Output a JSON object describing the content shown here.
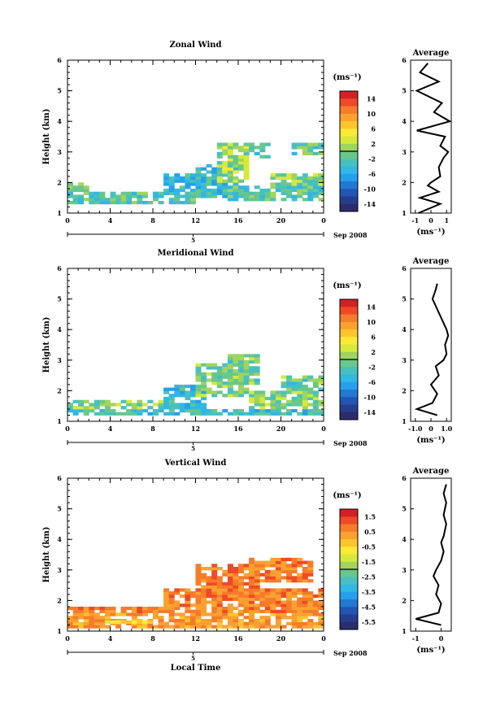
{
  "panels": [
    {
      "title": "Zonal Wind",
      "ylabel": "Height (km)",
      "yticks": [
        "1",
        "2",
        "3",
        "4",
        "5",
        "6"
      ],
      "xticks": [
        "0",
        "4",
        "8",
        "12",
        "16",
        "20",
        "0"
      ],
      "date_tick": "5",
      "date_label": "Sep 2008",
      "xlabel": "",
      "colorbar": {
        "unit": "(ms⁻¹)",
        "labels": [
          "14",
          "10",
          "6",
          "2",
          "-2",
          "-6",
          "-10",
          "-14"
        ],
        "colors": [
          "#d42027",
          "#ee4a25",
          "#f67b2b",
          "#fca12f",
          "#fdc42e",
          "#fde936",
          "#d6e93a",
          "#9fd45d",
          "#68c78c",
          "#48c1bd",
          "#31b7e4",
          "#25a0ec",
          "#2179d3",
          "#2156b3",
          "#263e90",
          "#2a2d6b"
        ]
      },
      "average": {
        "title": "Average",
        "xlabel": "(ms⁻¹)",
        "xticks": [
          "-1",
          "0",
          "1"
        ],
        "yticks": [
          "1",
          "2",
          "3",
          "4",
          "5",
          "6"
        ]
      }
    },
    {
      "title": "Meridional Wind",
      "ylabel": "Height (km)",
      "yticks": [
        "1",
        "2",
        "3",
        "4",
        "5",
        "6"
      ],
      "xticks": [
        "0",
        "4",
        "8",
        "12",
        "16",
        "20",
        "0"
      ],
      "date_tick": "5",
      "date_label": "Sep 2008",
      "xlabel": "",
      "colorbar": {
        "unit": "(ms⁻¹)",
        "labels": [
          "14",
          "10",
          "6",
          "2",
          "-2",
          "-6",
          "-10",
          "-14"
        ],
        "colors": [
          "#d42027",
          "#ee4a25",
          "#f67b2b",
          "#fca12f",
          "#fdc42e",
          "#fde936",
          "#d6e93a",
          "#9fd45d",
          "#68c78c",
          "#48c1bd",
          "#31b7e4",
          "#25a0ec",
          "#2179d3",
          "#2156b3",
          "#263e90",
          "#2a2d6b"
        ]
      },
      "average": {
        "title": "Average",
        "xlabel": "(ms⁻¹)",
        "xticks": [
          "-1.0",
          "0",
          "1.0"
        ],
        "yticks": [
          "1",
          "2",
          "3",
          "4",
          "5",
          "6"
        ]
      }
    },
    {
      "title": "Vertical Wind",
      "ylabel": "Height (km)",
      "yticks": [
        "1",
        "2",
        "3",
        "4",
        "5",
        "6"
      ],
      "xticks": [
        "0",
        "4",
        "8",
        "12",
        "16",
        "20",
        "0"
      ],
      "date_tick": "5",
      "date_label": "Sep 2008",
      "xlabel": "Local Time",
      "colorbar": {
        "unit": "(ms⁻¹)",
        "labels": [
          "1.5",
          "0.5",
          "-0.5",
          "-1.5",
          "-2.5",
          "-3.5",
          "-4.5",
          "-5.5"
        ],
        "colors": [
          "#d42027",
          "#ee4a25",
          "#f67b2b",
          "#fca12f",
          "#fdc42e",
          "#fde936",
          "#d6e93a",
          "#9fd45d",
          "#68c78c",
          "#48c1bd",
          "#31b7e4",
          "#25a0ec",
          "#2179d3",
          "#2156b3",
          "#263e90",
          "#2a2d6b"
        ]
      },
      "average": {
        "title": "Average",
        "xlabel": "(ms⁻¹)",
        "xticks": [
          "-1",
          "0"
        ],
        "yticks": [
          "1",
          "2",
          "3",
          "4",
          "5",
          "6"
        ]
      }
    }
  ],
  "chart_data": [
    {
      "type": "heatmap",
      "title": "Zonal Wind",
      "xlabel": "",
      "ylabel": "Height (km)",
      "xlim": [
        0,
        24
      ],
      "ylim": [
        1,
        6
      ],
      "colorbar_range": [
        -14,
        14
      ],
      "cells": [
        {
          "t0": 0,
          "t1": 12,
          "h0": 1.3,
          "h1": 1.7,
          "v": -2
        },
        {
          "t0": 0,
          "t1": 2,
          "h0": 1.7,
          "h1": 2.0,
          "v": -1
        },
        {
          "t0": 9,
          "t1": 13,
          "h0": 1.6,
          "h1": 2.3,
          "v": -4
        },
        {
          "t0": 12,
          "t1": 16,
          "h0": 1.5,
          "h1": 2.6,
          "v": -3
        },
        {
          "t0": 14,
          "t1": 17,
          "h0": 2.0,
          "h1": 3.3,
          "v": 1
        },
        {
          "t0": 16.5,
          "t1": 19,
          "h0": 2.8,
          "h1": 3.3,
          "v": -2
        },
        {
          "t0": 15,
          "t1": 24,
          "h0": 1.4,
          "h1": 1.9,
          "v": -2
        },
        {
          "t0": 19,
          "t1": 24,
          "h0": 1.9,
          "h1": 2.3,
          "v": 0
        },
        {
          "t0": 21,
          "t1": 24,
          "h0": 2.9,
          "h1": 3.3,
          "v": -1
        }
      ],
      "average_profile": {
        "xlim": [
          -1.3,
          1.3
        ],
        "heights": [
          1.0,
          1.3,
          1.5,
          1.7,
          1.9,
          2.0,
          2.2,
          2.5,
          2.8,
          3.0,
          3.2,
          3.5,
          3.7,
          4.0,
          4.3,
          4.6,
          5.0,
          5.3,
          5.6,
          5.9
        ],
        "values": [
          -0.8,
          0.6,
          -0.7,
          0.5,
          -0.2,
          0.0,
          0.6,
          0.5,
          0.8,
          1.1,
          0.6,
          0.9,
          -0.9,
          1.2,
          0.2,
          0.7,
          -0.9,
          0.5,
          -0.7,
          -0.2
        ]
      }
    },
    {
      "type": "heatmap",
      "title": "Meridional Wind",
      "xlabel": "",
      "ylabel": "Height (km)",
      "xlim": [
        0,
        24
      ],
      "ylim": [
        1,
        6
      ],
      "colorbar_range": [
        -14,
        14
      ],
      "cells": [
        {
          "t0": 0,
          "t1": 24,
          "h0": 1.2,
          "h1": 1.4,
          "v": -3
        },
        {
          "t0": 0,
          "t1": 9,
          "h0": 1.4,
          "h1": 1.7,
          "v": 0
        },
        {
          "t0": 9,
          "t1": 13,
          "h0": 1.4,
          "h1": 2.2,
          "v": -4
        },
        {
          "t0": 12,
          "t1": 17,
          "h0": 1.8,
          "h1": 2.9,
          "v": 0
        },
        {
          "t0": 15,
          "t1": 18,
          "h0": 2.2,
          "h1": 3.2,
          "v": -1
        },
        {
          "t0": 17,
          "t1": 24,
          "h0": 1.4,
          "h1": 2.0,
          "v": 0
        },
        {
          "t0": 20,
          "t1": 24,
          "h0": 2.0,
          "h1": 2.5,
          "v": -1
        }
      ],
      "average_profile": {
        "xlim": [
          -1.3,
          1.3
        ],
        "heights": [
          1.2,
          1.4,
          1.6,
          1.9,
          2.2,
          2.5,
          2.8,
          3.0,
          3.2,
          3.5,
          3.8,
          4.0,
          5.0,
          5.3,
          5.5
        ],
        "values": [
          0.4,
          -0.9,
          0.1,
          0.4,
          0.0,
          0.5,
          0.3,
          0.8,
          1.0,
          0.9,
          1.1,
          1.0,
          0.1,
          0.3,
          0.4
        ]
      }
    },
    {
      "type": "heatmap",
      "title": "Vertical Wind",
      "xlabel": "Local Time",
      "ylabel": "Height (km)",
      "xlim": [
        0,
        24
      ],
      "ylim": [
        1,
        6
      ],
      "colorbar_range": [
        -5.5,
        1.5
      ],
      "cells": [
        {
          "t0": 0,
          "t1": 24,
          "h0": 1.1,
          "h1": 1.6,
          "v": 0.0
        },
        {
          "t0": 0,
          "t1": 10,
          "h0": 1.6,
          "h1": 1.8,
          "v": 0.3
        },
        {
          "t0": 9,
          "t1": 24,
          "h0": 1.6,
          "h1": 2.4,
          "v": 0.3
        },
        {
          "t0": 12,
          "t1": 18,
          "h0": 2.0,
          "h1": 3.2,
          "v": 0.4
        },
        {
          "t0": 17,
          "t1": 23,
          "h0": 2.6,
          "h1": 3.4,
          "v": 0.3
        },
        {
          "t0": 3,
          "t1": 8,
          "h0": 1.25,
          "h1": 1.35,
          "v": -1.0
        }
      ],
      "average_profile": {
        "xlim": [
          -1.2,
          0.4
        ],
        "heights": [
          1.2,
          1.4,
          1.6,
          1.9,
          2.2,
          2.5,
          2.8,
          3.0,
          3.3,
          3.6,
          3.9,
          4.1,
          4.5,
          4.8,
          5.2,
          5.5,
          5.8
        ],
        "values": [
          0.0,
          -1.0,
          -0.1,
          0.0,
          -0.2,
          -0.1,
          -0.3,
          -0.2,
          0.0,
          0.1,
          0.0,
          0.1,
          0.2,
          0.1,
          0.2,
          0.1,
          0.2
        ]
      }
    }
  ]
}
